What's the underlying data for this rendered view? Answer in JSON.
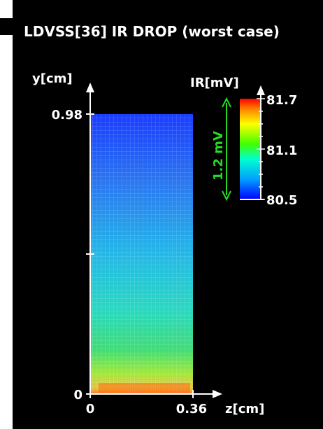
{
  "chart_data": {
    "type": "heatmap",
    "title": "LDVSS[36] IR DROP (worst case)",
    "xlabel": "z[cm]",
    "ylabel": "y[cm]",
    "xlim": [
      0,
      0.36
    ],
    "ylim": [
      0,
      0.98
    ],
    "x_ticks": [
      "0",
      "0.36"
    ],
    "y_ticks": [
      "0",
      "0.98"
    ],
    "colorbar": {
      "label": "IR[mV]",
      "min": 80.5,
      "max": 81.7,
      "ticks": [
        "81.7",
        "81.1",
        "80.5"
      ],
      "colormap": "jet",
      "span_annotation": "1.2 mV"
    },
    "field_description": {
      "direction": "increasing toward y=0",
      "value_at_top": 80.5,
      "value_at_bottom": 81.7
    }
  },
  "colors": {
    "background": "#000000",
    "text": "#ffffff",
    "annotation": "#22dd22"
  }
}
